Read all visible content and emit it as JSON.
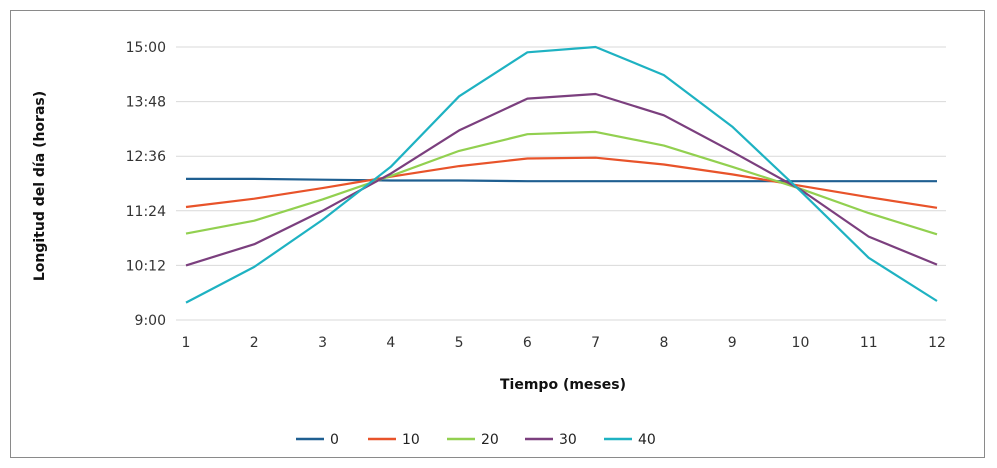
{
  "chart_data": {
    "type": "line",
    "title": "",
    "xlabel": "Tiempo (meses)",
    "ylabel": "Longitud del día (horas)",
    "categories": [
      1,
      2,
      3,
      4,
      5,
      6,
      7,
      8,
      9,
      10,
      11,
      12
    ],
    "y_ticks": [
      "9:00",
      "10:12",
      "11:24",
      "12:36",
      "13:48",
      "15:00"
    ],
    "ylim": [
      "9:00",
      "15:00"
    ],
    "grid": true,
    "legend_position": "bottom",
    "series": [
      {
        "name": "0",
        "color": "#1f5f91",
        "values": [
          "12:06",
          "12:06",
          "12:05",
          "12:04",
          "12:04",
          "12:03",
          "12:03",
          "12:03",
          "12:03",
          "12:03",
          "12:03",
          "12:03"
        ]
      },
      {
        "name": "10",
        "color": "#e8532a",
        "values": [
          "11:29",
          "11:40",
          "11:54",
          "12:09",
          "12:23",
          "12:33",
          "12:34",
          "12:25",
          "12:12",
          "11:57",
          "11:42",
          "11:28"
        ]
      },
      {
        "name": "20",
        "color": "#92d050",
        "values": [
          "10:54",
          "11:11",
          "11:39",
          "12:10",
          "12:43",
          "13:05",
          "13:08",
          "12:50",
          "12:22",
          "11:53",
          "11:21",
          "10:53"
        ]
      },
      {
        "name": "30",
        "color": "#7b3f7e",
        "values": [
          "10:12",
          "10:40",
          "11:24",
          "12:13",
          "13:10",
          "13:52",
          "13:58",
          "13:30",
          "12:42",
          "11:52",
          "10:50",
          "10:13"
        ]
      },
      {
        "name": "40",
        "color": "#1eb2c2",
        "values": [
          "9:23",
          "10:10",
          "11:12",
          "12:22",
          "13:55",
          "14:53",
          "15:00",
          "14:23",
          "13:15",
          "11:50",
          "10:22",
          "9:25"
        ]
      }
    ]
  }
}
